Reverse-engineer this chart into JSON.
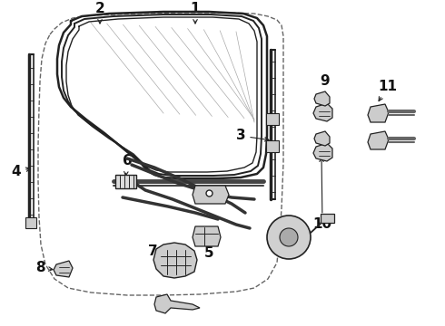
{
  "bg_color": "#ffffff",
  "line_color": "#222222",
  "gray_fill": "#cccccc",
  "light_gray": "#e8e8e8",
  "dashed_color": "#666666",
  "glass_line_color": "#aaaaaa",
  "label_color": "#111111",
  "label_fontsize": 10,
  "figsize": [
    4.9,
    3.6
  ],
  "dpi": 100
}
